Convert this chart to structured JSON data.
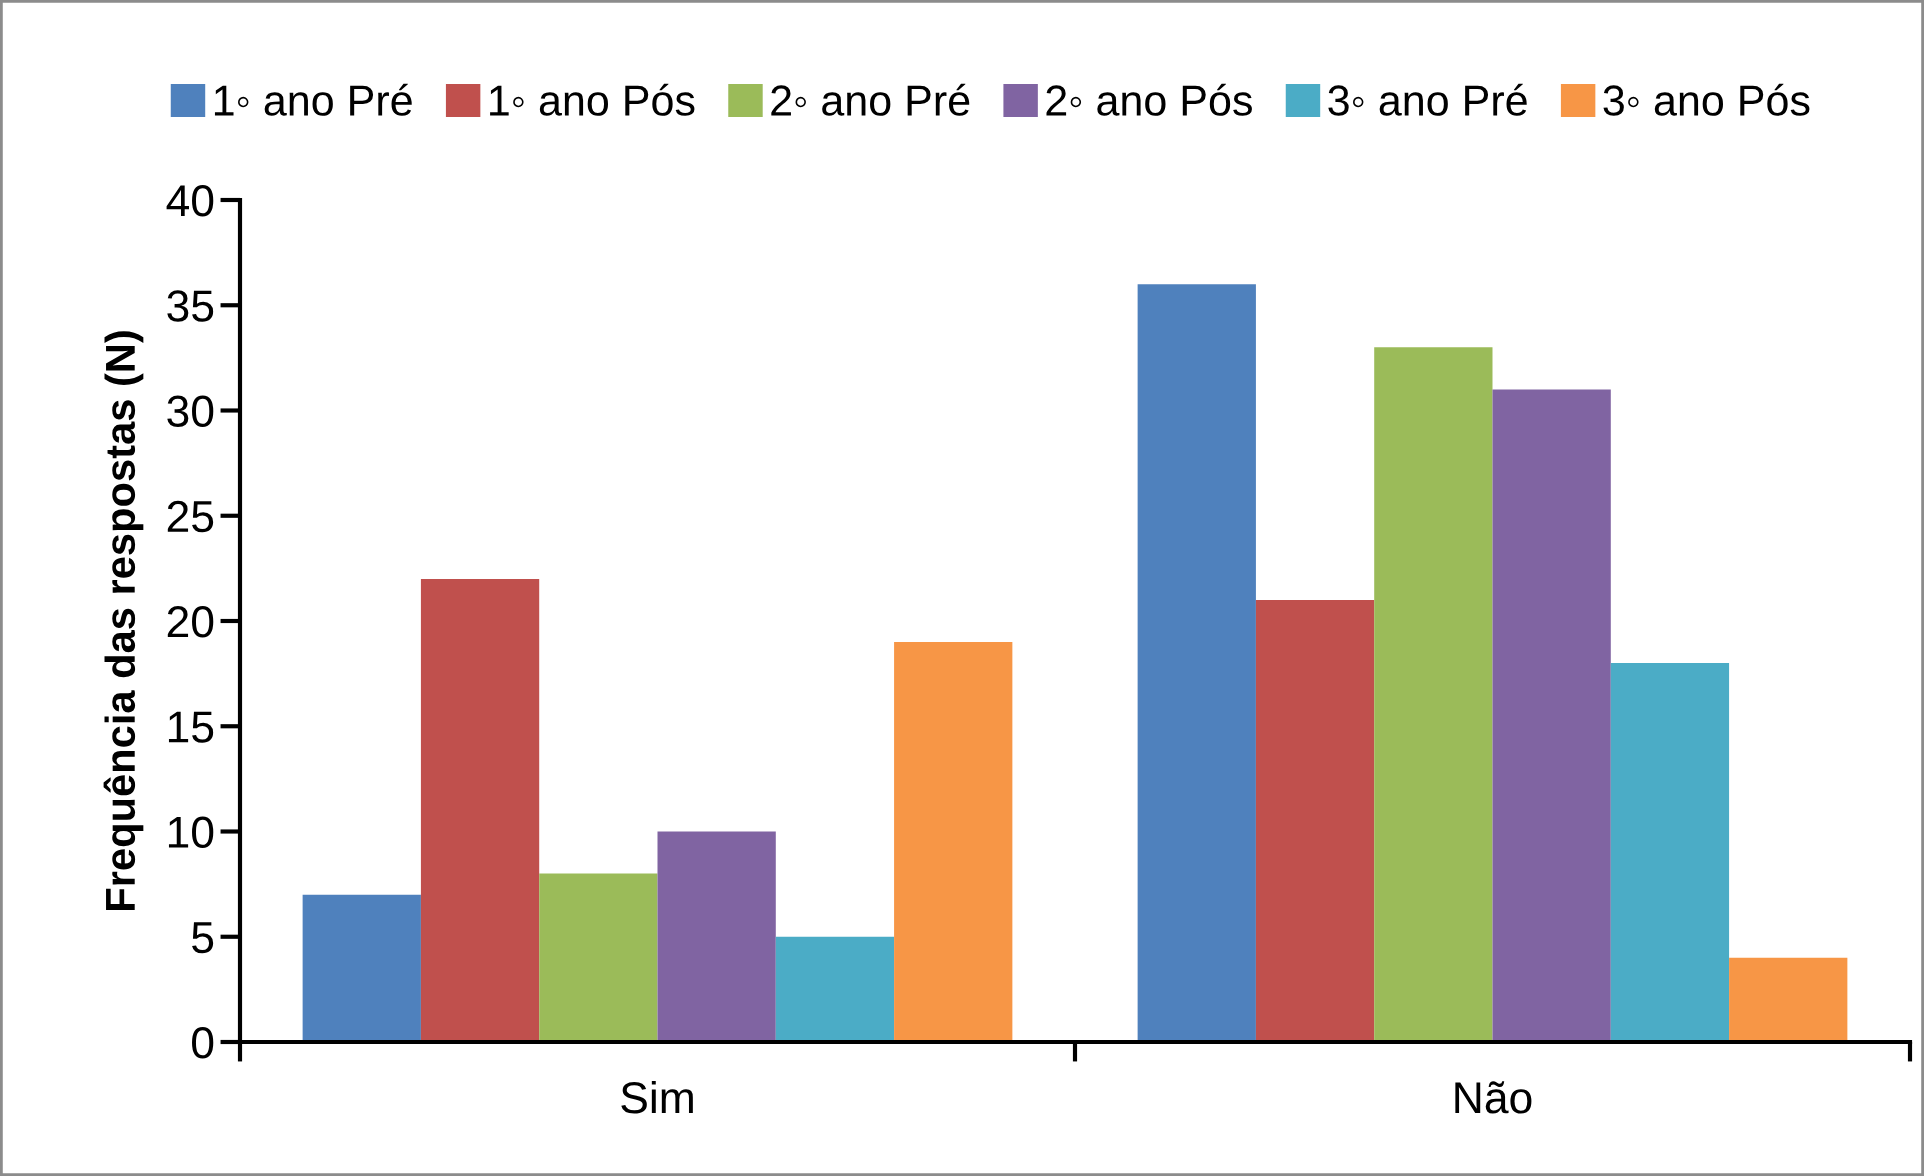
{
  "chart_data": {
    "type": "bar",
    "ylabel": "Frequência das respostas (N)",
    "categories": [
      "Sim",
      "Não"
    ],
    "series": [
      {
        "name": "1◦ ano Pré",
        "color": "#4f81bd",
        "values": [
          7,
          36
        ]
      },
      {
        "name": "1◦ ano Pós",
        "color": "#c0504d",
        "values": [
          22,
          21
        ]
      },
      {
        "name": "2◦ ano Pré",
        "color": "#9bbb59",
        "values": [
          8,
          33
        ]
      },
      {
        "name": "2◦ ano Pós",
        "color": "#8064a2",
        "values": [
          10,
          31
        ]
      },
      {
        "name": "3◦ ano Pré",
        "color": "#4bacc6",
        "values": [
          5,
          18
        ]
      },
      {
        "name": "3◦ ano Pós",
        "color": "#f79646",
        "values": [
          19,
          4
        ]
      }
    ],
    "ylim": [
      0,
      40
    ],
    "yticks": [
      0,
      5,
      10,
      15,
      20,
      25,
      30,
      35,
      40
    ],
    "grid": false,
    "legend": "top"
  }
}
